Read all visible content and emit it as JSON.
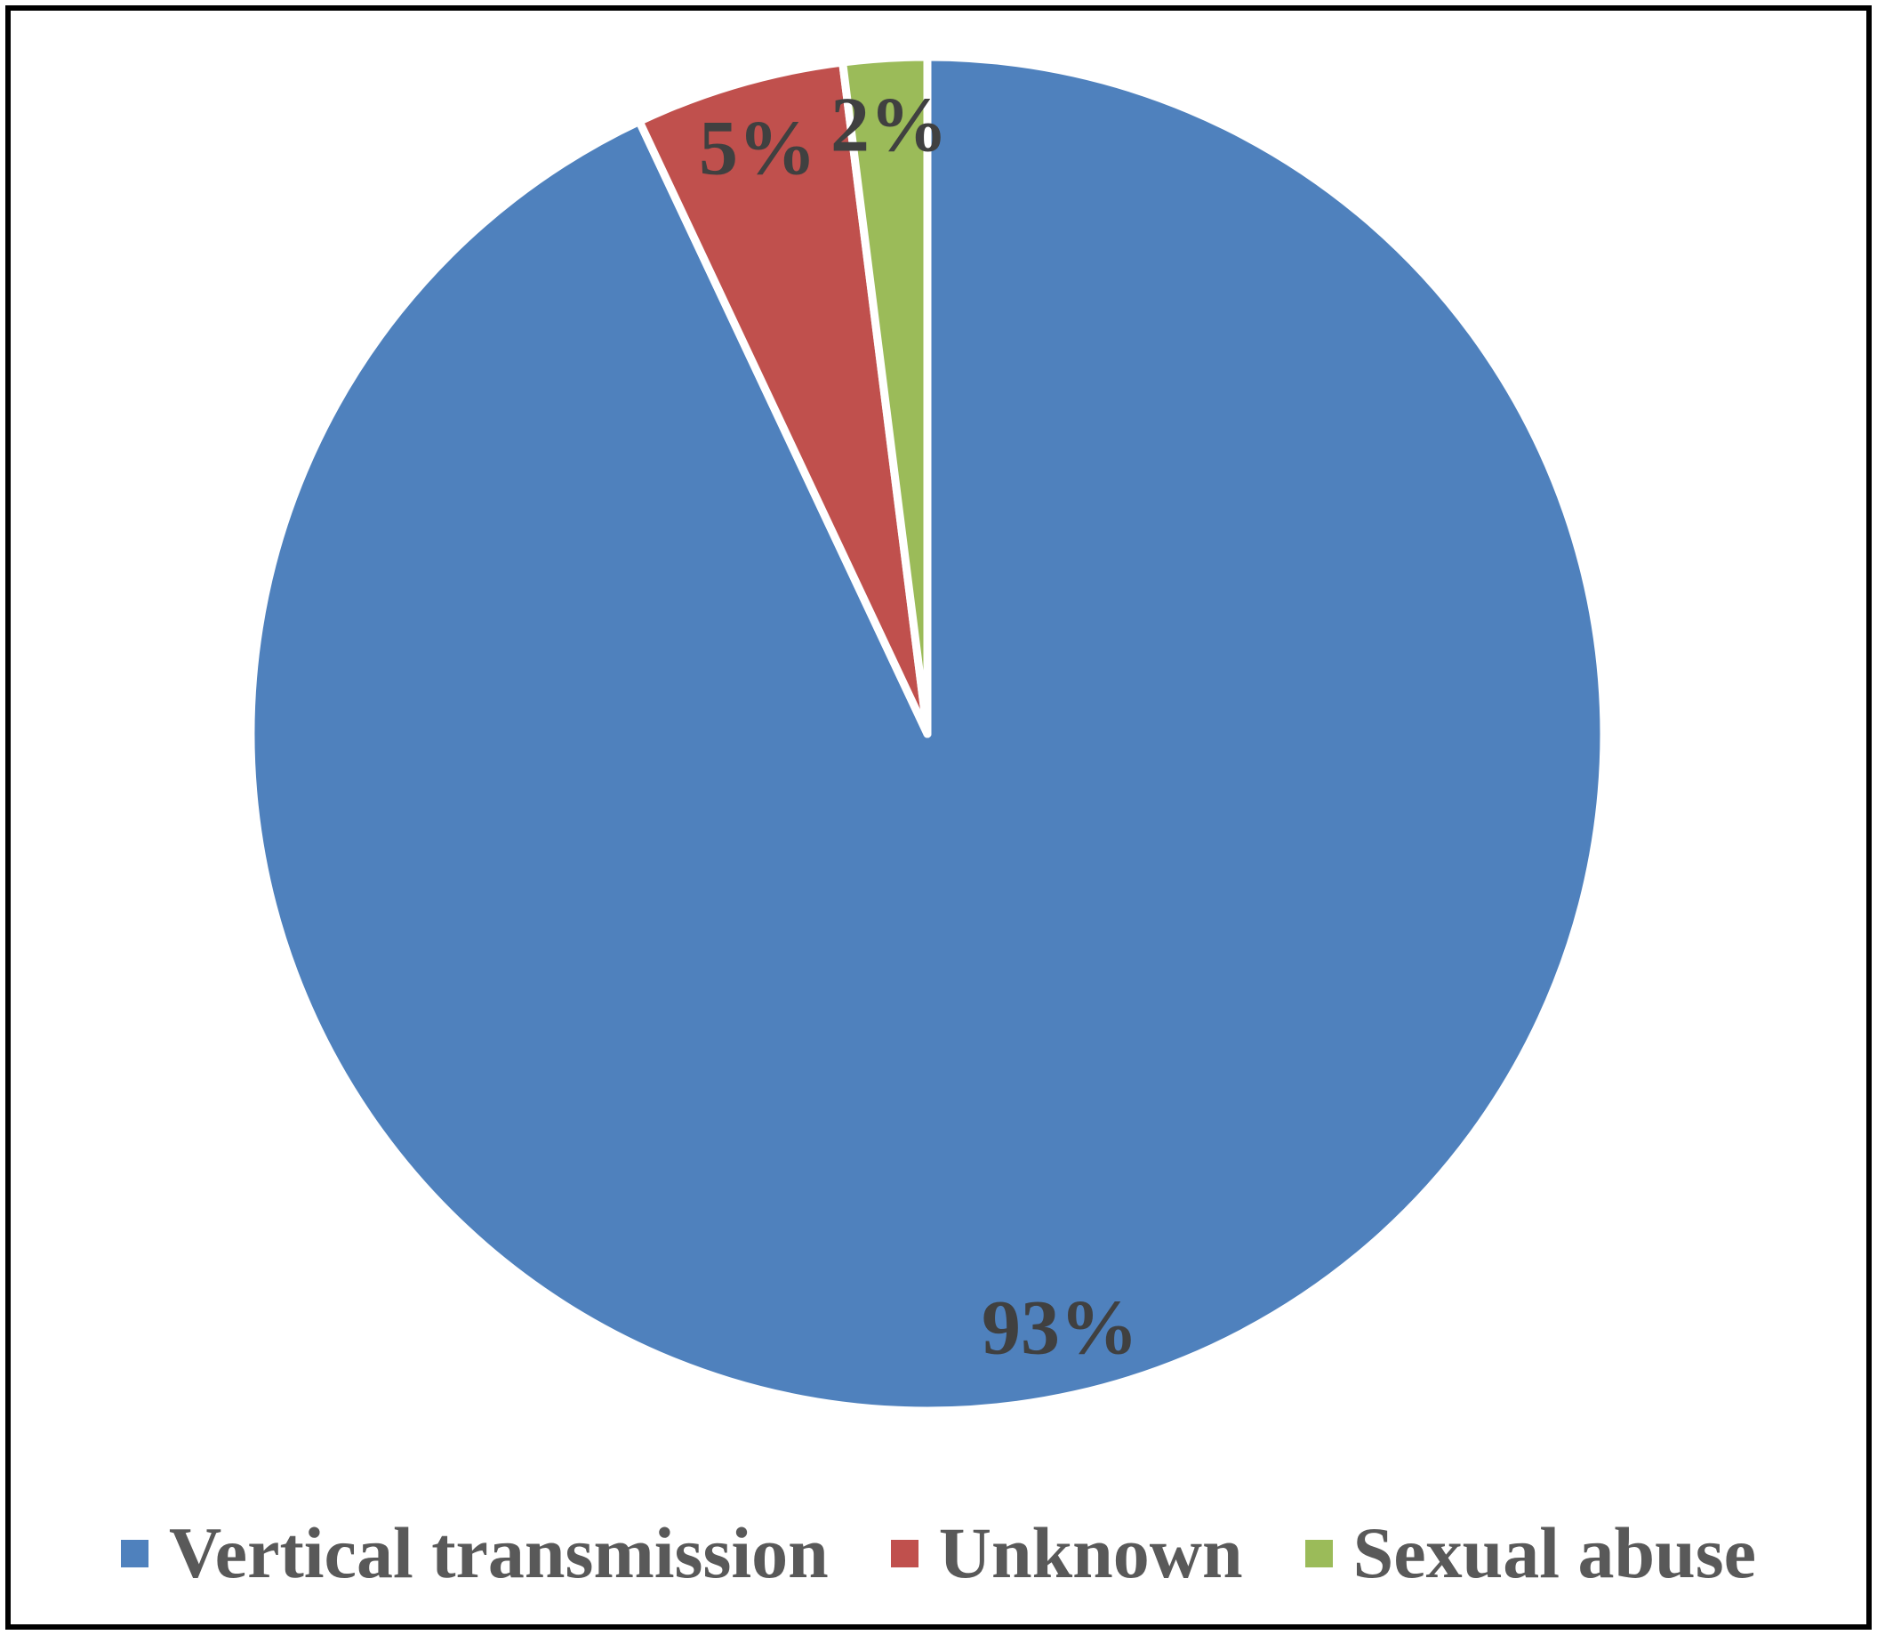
{
  "chart_data": {
    "type": "pie",
    "title": "",
    "categories": [
      "Vertical transmission",
      "Unknown",
      "Sexual abuse"
    ],
    "values": [
      93,
      5,
      2
    ],
    "slices": [
      {
        "label": "Vertical transmission",
        "value": 93,
        "display": "93%",
        "color": "#4F81BD"
      },
      {
        "label": "Unknown",
        "value": 5,
        "display": "5%",
        "color": "#C0504D"
      },
      {
        "label": "Sexual abuse",
        "value": 2,
        "display": "2%",
        "color": "#9BBB59"
      }
    ],
    "start_angle_deg": 0,
    "direction": "clockwise",
    "slice_border_color": "#FFFFFF",
    "label_color": "#404040",
    "legend_position": "bottom",
    "legend_text_color": "#595959",
    "frame_border_color": "#000000"
  }
}
